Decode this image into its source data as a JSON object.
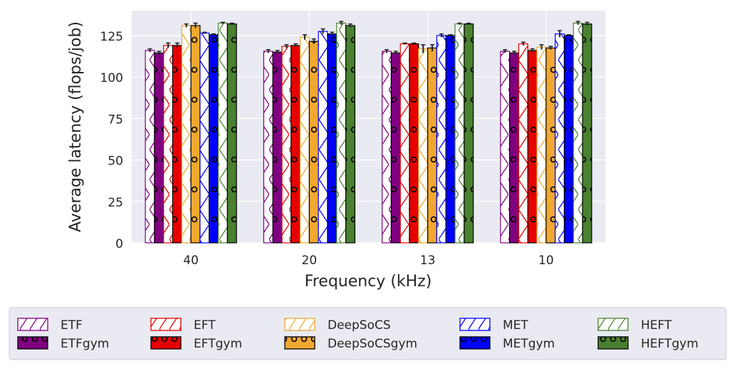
{
  "chart_data": {
    "type": "bar",
    "title": "",
    "xlabel": "Frequency (kHz)",
    "ylabel": "Average latency (flops/job)",
    "categories": [
      "40",
      "20",
      "13",
      "10"
    ],
    "ylim": [
      0,
      140
    ],
    "yticks": [
      0,
      25,
      50,
      75,
      100,
      125
    ],
    "grid": true,
    "legend_position": "bottom",
    "series": [
      {
        "name": "ETF",
        "color": "#800080",
        "hatch": "x",
        "filled": false,
        "values": [
          116,
          115.5,
          115.5,
          115.5
        ],
        "errors": [
          1,
          1,
          1,
          1
        ]
      },
      {
        "name": "ETFgym",
        "color": "#800080",
        "hatch": "o",
        "filled": true,
        "values": [
          114.5,
          115,
          114.5,
          114.5
        ],
        "errors": [
          1,
          1,
          1,
          1
        ]
      },
      {
        "name": "EFT",
        "color": "#e60000",
        "hatch": "x",
        "filled": false,
        "values": [
          119,
          118.5,
          120,
          120
        ],
        "errors": [
          1.5,
          1,
          0.5,
          1
        ]
      },
      {
        "name": "EFTgym",
        "color": "#e60000",
        "hatch": "o",
        "filled": true,
        "values": [
          119,
          119,
          120,
          116
        ],
        "errors": [
          1.5,
          1,
          0.5,
          1
        ]
      },
      {
        "name": "DeepSoCS",
        "color": "#f0a830",
        "hatch": "x",
        "filled": false,
        "values": [
          131,
          124,
          117,
          118
        ],
        "errors": [
          1,
          1.5,
          2.5,
          1.5
        ]
      },
      {
        "name": "DeepSoCSgym",
        "color": "#f0a830",
        "hatch": "o",
        "filled": true,
        "values": [
          131,
          121.5,
          117.5,
          117.5
        ],
        "errors": [
          1.5,
          1.5,
          2,
          1
        ]
      },
      {
        "name": "MET",
        "color": "#0000ff",
        "hatch": "x",
        "filled": false,
        "values": [
          126.5,
          127.5,
          125,
          126
        ],
        "errors": [
          0.5,
          1.5,
          1,
          2
        ]
      },
      {
        "name": "METgym",
        "color": "#0000ff",
        "hatch": "o",
        "filled": true,
        "values": [
          125.5,
          126,
          125,
          125
        ],
        "errors": [
          0.5,
          1,
          0.5,
          0.5
        ]
      },
      {
        "name": "HEFT",
        "color": "#4a8030",
        "hatch": "x",
        "filled": false,
        "values": [
          132.5,
          132.5,
          132,
          132.5
        ],
        "errors": [
          0.5,
          1,
          0.5,
          1
        ]
      },
      {
        "name": "HEFTgym",
        "color": "#4a8030",
        "hatch": "o",
        "filled": true,
        "values": [
          132,
          131,
          132,
          132
        ],
        "errors": [
          0.5,
          1,
          0.5,
          1
        ]
      }
    ],
    "legend_order": [
      "ETF",
      "EFT",
      "DeepSoCS",
      "MET",
      "HEFT",
      "ETFgym",
      "EFTgym",
      "DeepSoCSgym",
      "METgym",
      "HEFTgym"
    ]
  }
}
